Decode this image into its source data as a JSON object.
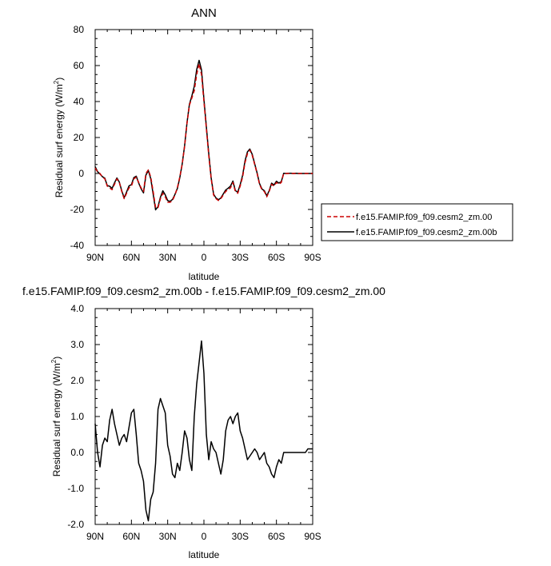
{
  "chart_data": [
    {
      "type": "line",
      "title": "ANN",
      "xlabel": "latitude",
      "ylabel": "Residual surf energy (W/m²)",
      "ylabel_main": "Residual surf energy (W/m",
      "ylabel_sup": "2",
      "ylabel_tail": ")",
      "xlim": [
        90,
        -90
      ],
      "ylim": [
        -40,
        80
      ],
      "x_tick_values": [
        90,
        60,
        30,
        0,
        -30,
        -60,
        -90
      ],
      "x_tick_labels": [
        "90N",
        "60N",
        "30N",
        "0",
        "30S",
        "60S",
        "90S"
      ],
      "y_tick_values": [
        -40,
        -20,
        0,
        20,
        40,
        60,
        80
      ],
      "y_tick_labels": [
        "-40",
        "-20",
        "0",
        "20",
        "40",
        "60",
        "80"
      ],
      "grid": false,
      "legend_position": "right",
      "series": [
        {
          "name": "f.e15.FAMIP.f09_f09.cesm2_zm.00",
          "color": "#cc0000",
          "dash": "dashed",
          "x": [
            90,
            88,
            86,
            84,
            82,
            80,
            78,
            76,
            74,
            72,
            70,
            68,
            66,
            64,
            62,
            60,
            58,
            56,
            54,
            52,
            50,
            48,
            46,
            44,
            42,
            40,
            38,
            36,
            34,
            32,
            30,
            28,
            26,
            24,
            22,
            20,
            18,
            16,
            14,
            12,
            10,
            8,
            6,
            4,
            2,
            0,
            -2,
            -4,
            -6,
            -8,
            -10,
            -12,
            -14,
            -16,
            -18,
            -20,
            -22,
            -24,
            -26,
            -28,
            -30,
            -32,
            -34,
            -36,
            -38,
            -40,
            -42,
            -44,
            -46,
            -48,
            -50,
            -52,
            -54,
            -56,
            -58,
            -60,
            -62,
            -64,
            -66,
            -68,
            -70,
            -72,
            -74,
            -76,
            -78,
            -80,
            -82,
            -84,
            -86,
            -88,
            -90
          ],
          "y": [
            3,
            1,
            0,
            -2,
            -3,
            -7,
            -8,
            -9,
            -6,
            -3,
            -5,
            -10,
            -14,
            -11,
            -8,
            -7,
            -3,
            -2,
            -5,
            -8,
            -10,
            0,
            2,
            -2,
            -10,
            -19,
            -19,
            -14,
            -11,
            -13,
            -16,
            -16,
            -15,
            -12,
            -8,
            -2,
            5,
            15,
            28,
            38,
            42,
            46,
            55,
            61,
            55,
            40,
            25,
            10,
            -3,
            -12,
            -14,
            -15,
            -14,
            -12,
            -10,
            -9,
            -8,
            -5,
            -10,
            -11,
            -7,
            -2,
            6,
            11,
            13,
            10,
            5,
            0,
            -6,
            -9,
            -10,
            -13,
            -10,
            -6,
            -7,
            -5,
            -6,
            -5,
            0,
            0,
            0,
            0,
            0,
            0,
            0,
            0,
            0,
            0,
            0,
            0,
            0
          ]
        },
        {
          "name": "f.e15.FAMIP.f09_f09.cesm2_zm.00b",
          "color": "#000000",
          "dash": "solid",
          "x": [
            90,
            88,
            86,
            84,
            82,
            80,
            78,
            76,
            74,
            72,
            70,
            68,
            66,
            64,
            62,
            60,
            58,
            56,
            54,
            52,
            50,
            48,
            46,
            44,
            42,
            40,
            38,
            36,
            34,
            32,
            30,
            28,
            26,
            24,
            22,
            20,
            18,
            16,
            14,
            12,
            10,
            8,
            6,
            4,
            2,
            0,
            -2,
            -4,
            -6,
            -8,
            -10,
            -12,
            -14,
            -16,
            -18,
            -20,
            -22,
            -24,
            -26,
            -28,
            -30,
            -32,
            -34,
            -36,
            -38,
            -40,
            -42,
            -44,
            -46,
            -48,
            -50,
            -52,
            -54,
            -56,
            -58,
            -60,
            -62,
            -64,
            -66,
            -68,
            -70,
            -72,
            -74,
            -76,
            -78,
            -80,
            -82,
            -84,
            -86,
            -88,
            -90
          ],
          "y": [
            3.8,
            1,
            -0.3,
            -1.8,
            -2.6,
            -6.7,
            -7.1,
            -8.3,
            -5.2,
            -2.5,
            -4.8,
            -9.6,
            -13.5,
            -10.3,
            -6.9,
            -6.2,
            -2.3,
            -1.5,
            -5.3,
            -8.5,
            -10.8,
            -0.9,
            1.6,
            -2.9,
            -11.5,
            -20.2,
            -18.4,
            -13.2,
            -9.6,
            -11.9,
            -15.1,
            -15.5,
            -14.4,
            -11.7,
            -8.4,
            -2.5,
            5.2,
            15.4,
            28.2,
            38.5,
            43.1,
            48.4,
            57.7,
            62.9,
            57.6,
            41.3,
            26.1,
            11.1,
            -2.5,
            -11.5,
            -13.6,
            -14.6,
            -13.6,
            -11.4,
            -9.2,
            -8.2,
            -7.0,
            -4.2,
            -9.5,
            -10.4,
            -6.2,
            -1.1,
            7.0,
            12.0,
            13.6,
            10.6,
            5.4,
            0.3,
            -5.6,
            -8.6,
            -9.6,
            -12.4,
            -9.6,
            -5.4,
            -6.4,
            -4.3,
            -5.3,
            -4.6,
            0.1,
            0,
            0.1,
            0.1,
            0,
            0.1,
            0,
            0,
            0,
            0,
            0,
            0,
            0
          ]
        }
      ]
    },
    {
      "type": "line",
      "title": "f.e15.FAMIP.f09_f09.cesm2_zm.00b - f.e15.FAMIP.f09_f09.cesm2_zm.00",
      "xlabel": "latitude",
      "ylabel": "Residual surf energy (W/m²)",
      "ylabel_main": "Residual surf energy (W/m",
      "ylabel_sup": "2",
      "ylabel_tail": ")",
      "xlim": [
        90,
        -90
      ],
      "ylim": [
        -2.0,
        4.0
      ],
      "x_tick_values": [
        90,
        60,
        30,
        0,
        -30,
        -60,
        -90
      ],
      "x_tick_labels": [
        "90N",
        "60N",
        "30N",
        "0",
        "30S",
        "60S",
        "90S"
      ],
      "y_tick_values": [
        -2,
        -1,
        0,
        1,
        2,
        3,
        4
      ],
      "y_tick_labels": [
        "-2.0",
        "-1.0",
        "0.0",
        "1.0",
        "2.0",
        "3.0",
        "4.0"
      ],
      "grid": false,
      "series": [
        {
          "color": "#000000",
          "dash": "solid",
          "x": [
            90,
            88,
            86,
            84,
            82,
            80,
            78,
            76,
            74,
            72,
            70,
            68,
            66,
            64,
            62,
            60,
            58,
            56,
            54,
            52,
            50,
            48,
            46,
            44,
            42,
            40,
            38,
            36,
            34,
            32,
            30,
            28,
            26,
            24,
            22,
            20,
            18,
            16,
            14,
            12,
            10,
            8,
            6,
            4,
            2,
            0,
            -2,
            -4,
            -6,
            -8,
            -10,
            -12,
            -14,
            -16,
            -18,
            -20,
            -22,
            -24,
            -26,
            -28,
            -30,
            -32,
            -34,
            -36,
            -38,
            -40,
            -42,
            -44,
            -46,
            -48,
            -50,
            -52,
            -54,
            -56,
            -58,
            -60,
            -62,
            -64,
            -66,
            -68,
            -70,
            -72,
            -74,
            -76,
            -78,
            -80,
            -82,
            -84,
            -86,
            -88,
            -90
          ],
          "y": [
            0.8,
            0.0,
            -0.4,
            0.2,
            0.4,
            0.3,
            0.9,
            1.2,
            0.8,
            0.5,
            0.2,
            0.4,
            0.5,
            0.3,
            0.7,
            1.1,
            1.2,
            0.5,
            -0.3,
            -0.5,
            -0.8,
            -1.6,
            -1.9,
            -1.3,
            -1.1,
            -0.3,
            1.2,
            1.5,
            1.3,
            1.1,
            0.2,
            -0.1,
            -0.6,
            -0.7,
            -0.3,
            -0.5,
            0.0,
            0.6,
            0.4,
            -0.2,
            -0.5,
            1.0,
            1.9,
            2.5,
            3.1,
            2.2,
            0.5,
            -0.2,
            0.3,
            0.1,
            0.0,
            -0.3,
            -0.6,
            -0.2,
            0.6,
            0.9,
            1.0,
            0.8,
            1.0,
            1.1,
            0.6,
            0.4,
            0.1,
            -0.2,
            -0.1,
            0.0,
            0.1,
            0.0,
            -0.2,
            -0.1,
            0.0,
            -0.3,
            -0.4,
            -0.6,
            -0.7,
            -0.4,
            -0.2,
            -0.3,
            0.0,
            0.0,
            0.0,
            0.0,
            0.0,
            0.0,
            0.0,
            0.0,
            0.0,
            0.0,
            0.1,
            0.1,
            0.1
          ]
        }
      ]
    }
  ]
}
